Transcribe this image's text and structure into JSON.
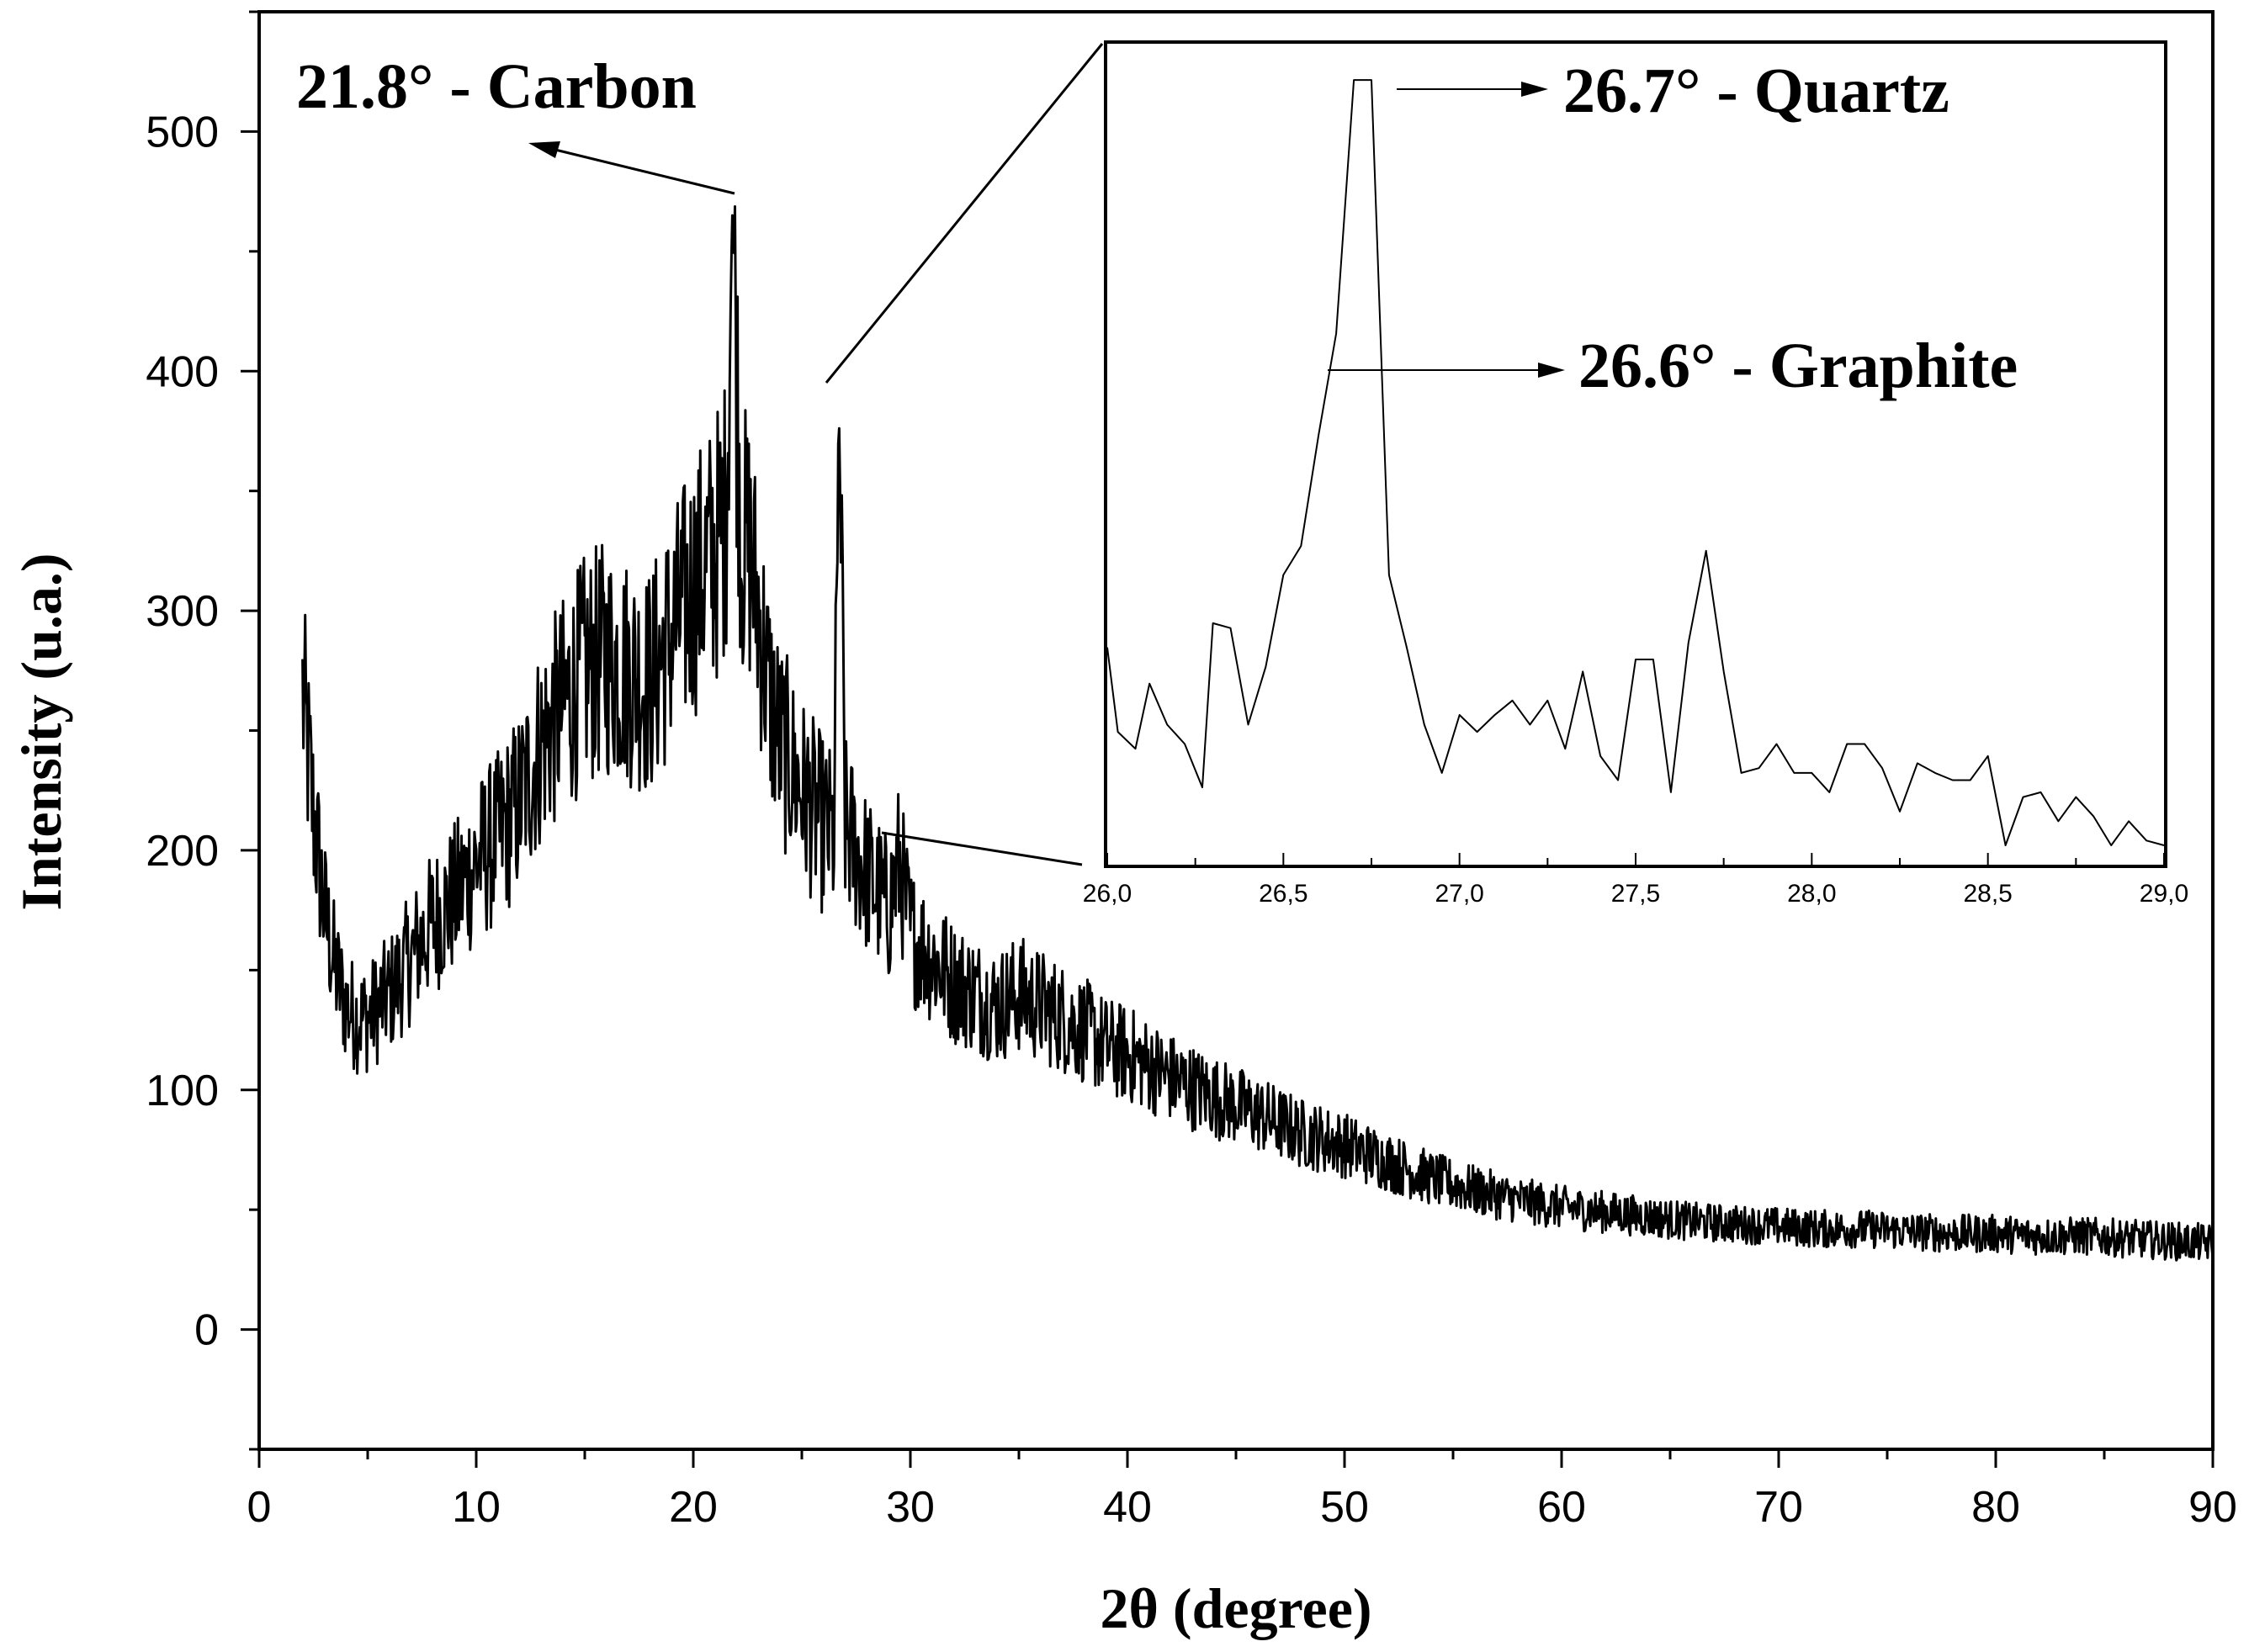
{
  "chart_data": [
    {
      "type": "line",
      "xlabel": "2θ (degree)",
      "ylabel": "Intensity (u.a.)",
      "xlim": [
        0,
        90
      ],
      "ylim": [
        -50,
        550
      ],
      "x_ticks": [
        "0",
        "10",
        "20",
        "30",
        "40",
        "50",
        "60",
        "70",
        "80",
        "90"
      ],
      "y_ticks": [
        "0",
        "100",
        "200",
        "300",
        "400",
        "500"
      ],
      "grid": false,
      "legend": "none",
      "line_color": "#000000",
      "series": [
        {
          "x": [
            2,
            2.5,
            3,
            3.5,
            4,
            4.5,
            5,
            6,
            7,
            8,
            9,
            10,
            11,
            12,
            13,
            14,
            15,
            16,
            17,
            18,
            19,
            20,
            21,
            21.5,
            21.8,
            22.2,
            22.6,
            23,
            23.5,
            24,
            25,
            26,
            26.5,
            26.7,
            27,
            27.5,
            28,
            29,
            29.5,
            30,
            31,
            32,
            33,
            34,
            35,
            36,
            37,
            38,
            39,
            40,
            42,
            44,
            46,
            48,
            50,
            52,
            54,
            56,
            58,
            60,
            62,
            64,
            66,
            68,
            70,
            72,
            74,
            76,
            78,
            80,
            82,
            84,
            86,
            88,
            90
          ],
          "y": [
            265,
            215,
            175,
            150,
            135,
            130,
            130,
            140,
            155,
            170,
            180,
            195,
            205,
            220,
            245,
            260,
            275,
            280,
            275,
            270,
            290,
            310,
            325,
            340,
            465,
            330,
            325,
            300,
            265,
            245,
            225,
            210,
            205,
            388,
            210,
            200,
            190,
            175,
            195,
            165,
            155,
            145,
            140,
            135,
            140,
            135,
            130,
            125,
            118,
            115,
            105,
            97,
            90,
            82,
            77,
            70,
            63,
            58,
            54,
            51,
            49,
            47,
            45,
            44,
            43,
            42,
            42,
            41,
            40,
            40,
            39,
            39,
            38,
            37,
            36
          ]
        }
      ],
      "annotations": [
        {
          "text": "21.8° - Carbon",
          "x": 21.8,
          "y": 465
        }
      ]
    },
    {
      "type": "line",
      "xlim": [
        26.0,
        29.0
      ],
      "x_ticks": [
        "26,0",
        "26,5",
        "27,0",
        "27,5",
        "28,0",
        "28,5",
        "29,0"
      ],
      "grid": false,
      "legend": "none",
      "line_color": "#000000",
      "series": [
        {
          "x": [
            26.0,
            26.03,
            26.08,
            26.12,
            26.17,
            26.22,
            26.27,
            26.3,
            26.35,
            26.4,
            26.45,
            26.5,
            26.55,
            26.6,
            26.65,
            26.7,
            26.75,
            26.8,
            26.85,
            26.9,
            26.95,
            27.0,
            27.05,
            27.1,
            27.15,
            27.2,
            27.25,
            27.3,
            27.35,
            27.4,
            27.45,
            27.5,
            27.55,
            27.6,
            27.65,
            27.7,
            27.75,
            27.8,
            27.85,
            27.9,
            27.95,
            28.0,
            28.05,
            28.1,
            28.15,
            28.2,
            28.25,
            28.3,
            28.35,
            28.4,
            28.45,
            28.5,
            28.55,
            28.6,
            28.65,
            28.7,
            28.75,
            28.8,
            28.85,
            28.9,
            28.95,
            29.0
          ],
          "y": [
            290,
            255,
            248,
            275,
            258,
            250,
            232,
            300,
            298,
            258,
            282,
            320,
            332,
            378,
            420,
            525,
            525,
            320,
            290,
            258,
            238,
            262,
            255,
            262,
            268,
            258,
            268,
            248,
            280,
            245,
            235,
            285,
            285,
            230,
            292,
            330,
            280,
            238,
            240,
            250,
            238,
            238,
            230,
            250,
            250,
            240,
            222,
            242,
            238,
            235,
            235,
            245,
            208,
            228,
            230,
            218,
            228,
            220,
            208,
            218,
            210,
            208
          ]
        }
      ],
      "annotations": [
        {
          "text": "26.7° - Quartz",
          "x": 26.75,
          "y": 525
        },
        {
          "text": "26.6° - Graphite",
          "x": 26.62,
          "y": 400
        }
      ]
    }
  ]
}
